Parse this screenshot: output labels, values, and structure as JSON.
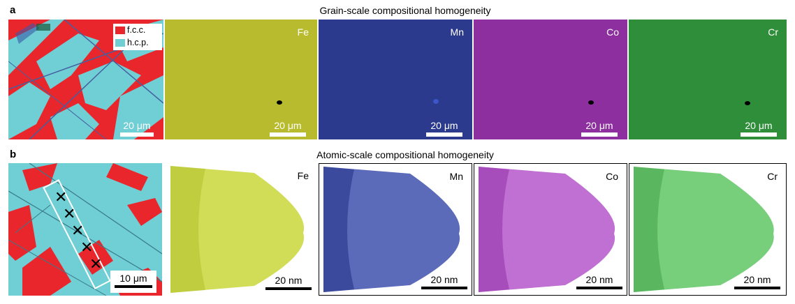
{
  "panel_a": {
    "label": "a",
    "title": "Grain-scale compositional homogeneity",
    "legend": [
      {
        "label": "f.c.c.",
        "color": "#e8262c"
      },
      {
        "label": "h.c.p.",
        "color": "#6fcfd4"
      }
    ],
    "ebsd_scale": "20 μm",
    "maps": [
      {
        "element": "Fe",
        "color": "#b9bb2e",
        "scale": "20 μm"
      },
      {
        "element": "Mn",
        "color": "#2c3a8e",
        "scale": "20 μm"
      },
      {
        "element": "Co",
        "color": "#8e2fa0",
        "scale": "20 μm"
      },
      {
        "element": "Cr",
        "color": "#2f8e3a",
        "scale": "20 μm"
      }
    ]
  },
  "panel_b": {
    "label": "b",
    "title": "Atomic-scale compositional homogeneity",
    "ebsd_scale": "10 μm",
    "tips": [
      {
        "element": "Fe",
        "color": "#c9d63a",
        "scale": "20 nm"
      },
      {
        "element": "Mn",
        "color": "#3346a8",
        "scale": "20 nm"
      },
      {
        "element": "Co",
        "color": "#b04bc8",
        "scale": "20 nm"
      },
      {
        "element": "Cr",
        "color": "#55c25a",
        "scale": "20 nm"
      }
    ]
  }
}
